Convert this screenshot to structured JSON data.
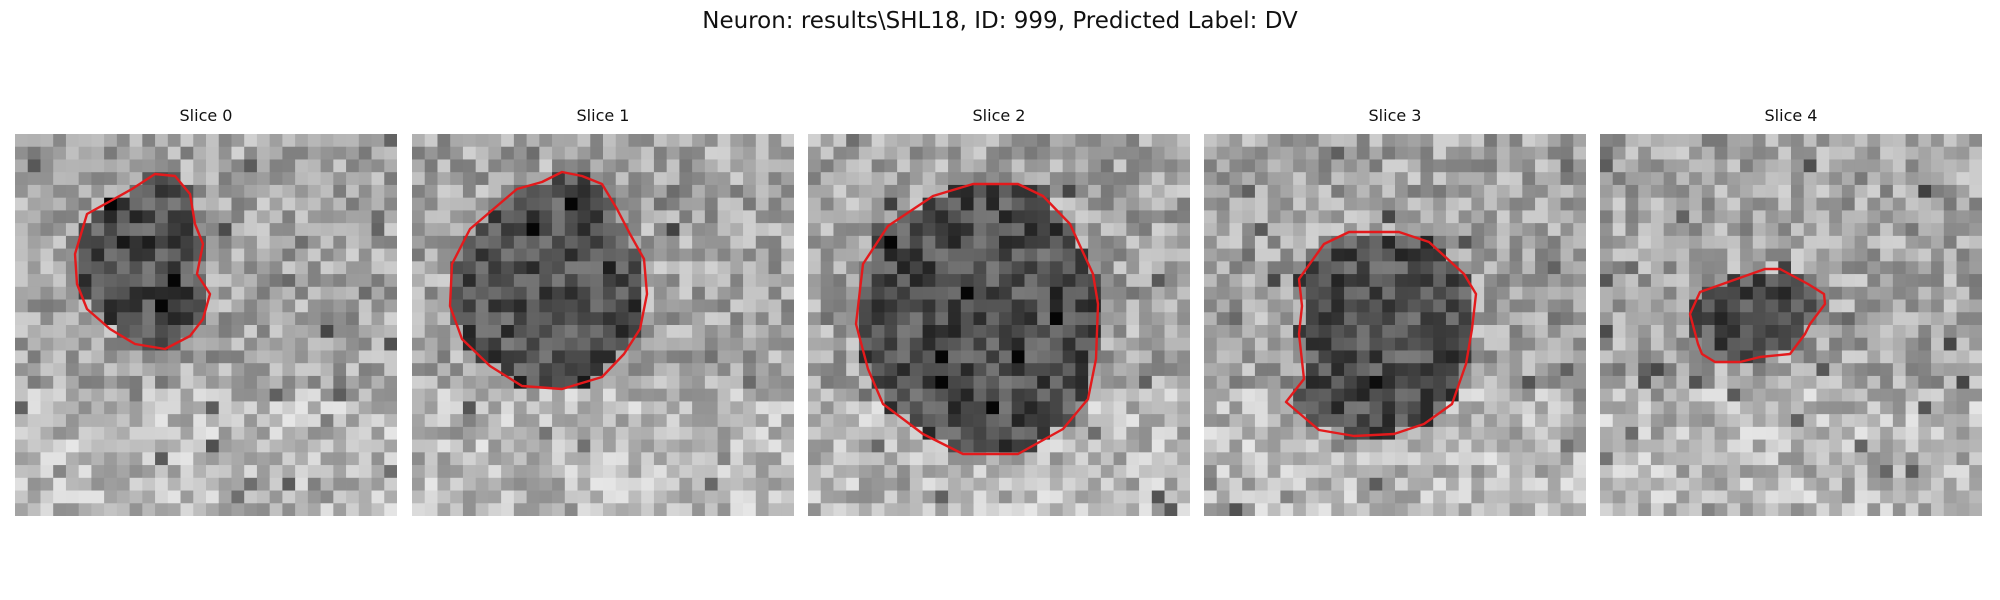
{
  "suptitle": "Neuron: results\\SHL18, ID: 999, Predicted Label: DV",
  "slices": [
    {
      "title": "Slice 0"
    },
    {
      "title": "Slice 1"
    },
    {
      "title": "Slice 2"
    },
    {
      "title": "Slice 3"
    },
    {
      "title": "Slice 4"
    }
  ],
  "colors": {
    "contour": "#e31a1c"
  }
}
